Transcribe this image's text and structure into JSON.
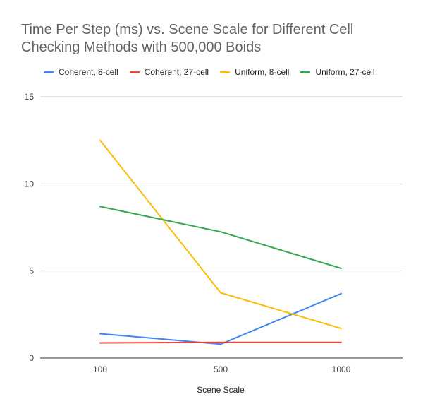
{
  "chart_data": {
    "type": "line",
    "title": "Time Per Step (ms) vs. Scene Scale for Different Cell Checking Methods with 500,000 Boids",
    "xlabel": "Scene Scale",
    "ylabel": "",
    "categories": [
      "100",
      "500",
      "1000"
    ],
    "ylim": [
      0,
      15
    ],
    "yticks": [
      0,
      5,
      10,
      15
    ],
    "grid": true,
    "legend_position": "top",
    "series": [
      {
        "name": "Coherent, 8-cell",
        "color": "#4285f4",
        "values": [
          1.4,
          0.8,
          3.7
        ]
      },
      {
        "name": "Coherent, 27-cell",
        "color": "#ea4335",
        "values": [
          0.87,
          0.9,
          0.9
        ]
      },
      {
        "name": "Uniform, 8-cell",
        "color": "#fbbc04",
        "values": [
          12.5,
          3.75,
          1.7
        ]
      },
      {
        "name": "Uniform, 27-cell",
        "color": "#34a853",
        "values": [
          8.7,
          7.25,
          5.15
        ]
      }
    ]
  }
}
